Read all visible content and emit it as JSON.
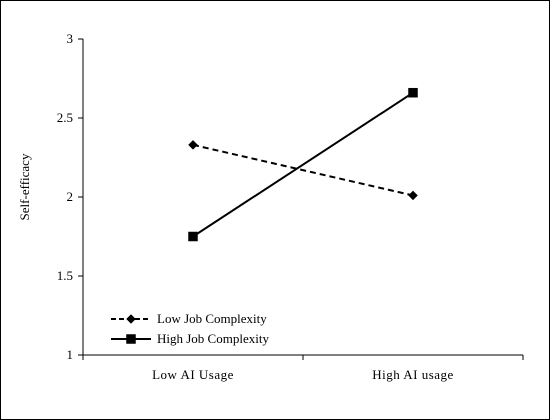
{
  "chart_data": {
    "type": "line",
    "title": "",
    "xlabel": "",
    "ylabel": "Self-efficacy",
    "categories": [
      "Low AI Usage",
      "High AI usage"
    ],
    "ylim": [
      1,
      3
    ],
    "yticks": [
      1,
      1.5,
      2,
      2.5,
      3
    ],
    "ytick_labels": [
      "1",
      "1.5",
      "2",
      "2.5",
      "3"
    ],
    "grid": false,
    "legend": {
      "position": "bottom-left"
    },
    "series": [
      {
        "name": "Low Job Complexity",
        "values": [
          2.33,
          2.01
        ],
        "line_style": "dashed",
        "marker": "diamond",
        "color": "#000000"
      },
      {
        "name": "High Job Complexity",
        "values": [
          1.75,
          2.66
        ],
        "line_style": "solid",
        "marker": "square",
        "color": "#000000"
      }
    ]
  }
}
